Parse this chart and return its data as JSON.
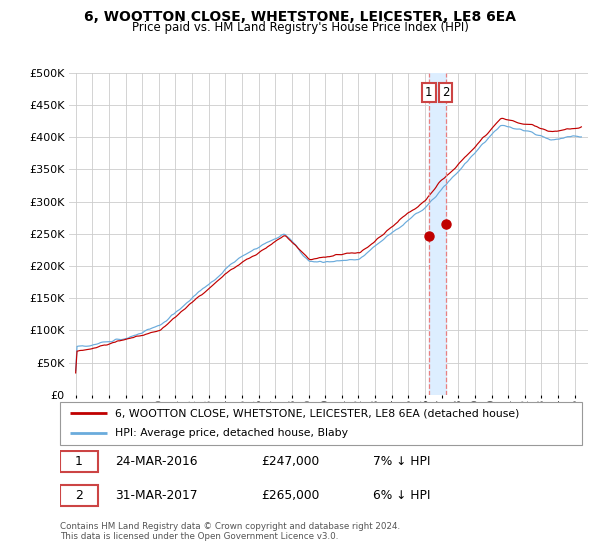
{
  "title": "6, WOOTTON CLOSE, WHETSTONE, LEICESTER, LE8 6EA",
  "subtitle": "Price paid vs. HM Land Registry's House Price Index (HPI)",
  "legend_line1": "6, WOOTTON CLOSE, WHETSTONE, LEICESTER, LE8 6EA (detached house)",
  "legend_line2": "HPI: Average price, detached house, Blaby",
  "transaction1_date": "24-MAR-2016",
  "transaction1_price": "£247,000",
  "transaction1_hpi": "7% ↓ HPI",
  "transaction2_date": "31-MAR-2017",
  "transaction2_price": "£265,000",
  "transaction2_hpi": "6% ↓ HPI",
  "footnote": "Contains HM Land Registry data © Crown copyright and database right 2024.\nThis data is licensed under the Open Government Licence v3.0.",
  "hpi_color": "#6aabdc",
  "price_color": "#c00000",
  "vline_color": "#e88080",
  "shade_color": "#ddeeff",
  "annotation_box_color": "#cc4444",
  "ylim": [
    0,
    500000
  ],
  "yticks": [
    0,
    50000,
    100000,
    150000,
    200000,
    250000,
    300000,
    350000,
    400000,
    450000,
    500000
  ],
  "transaction1_x": 2016.23,
  "transaction1_y": 247000,
  "transaction2_x": 2017.25,
  "transaction2_y": 265000,
  "xlim_min": 1994.6,
  "xlim_max": 2025.8
}
